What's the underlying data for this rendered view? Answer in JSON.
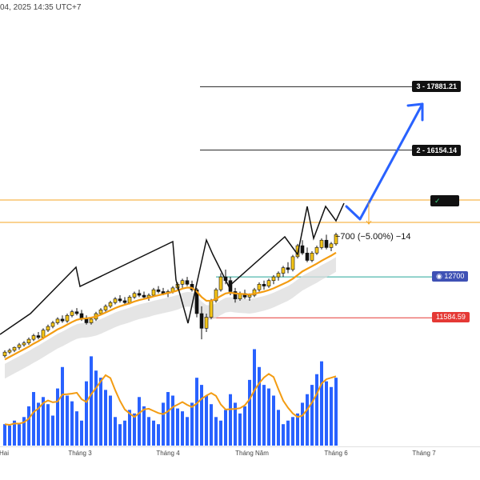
{
  "header": {
    "timestamp": "04, 2025 14:35 UTC+7"
  },
  "colors": {
    "up_candle": "#f5c518",
    "down_candle": "#111111",
    "ma_line": "#f39c12",
    "volume_bar": "#2962ff",
    "volume_ma": "#f39c12",
    "arrow": "#2962ff",
    "target_line": "#222222",
    "resistance_line": "#f5a623",
    "support_line": "#26a69a",
    "stop_line": "#e53935",
    "cloud": "#dcdcdc"
  },
  "levels": [
    {
      "label": "3 - 17881.21",
      "price": 17881.21
    },
    {
      "label": "2 - 16154.14",
      "price": 16154.14
    }
  ],
  "marker_check": "✓",
  "price_tags": {
    "support": {
      "label": "◉ 12700",
      "price": 12700
    },
    "stop": {
      "label": "11584.59",
      "price": 11584.59
    }
  },
  "annotation": "−700 (−5.00%) −14",
  "chart_data": {
    "type": "candlestick",
    "title": "",
    "xlabel": "",
    "ylabel": "",
    "x_ticks": [
      "Hai",
      "Tháng 3",
      "Tháng 4",
      "Tháng Năm",
      "Tháng 6",
      "Tháng 7"
    ],
    "series": [
      {
        "values": [
          [
            10550,
            10700,
            10500,
            10650
          ],
          [
            10650,
            10750,
            10600,
            10700
          ],
          [
            10700,
            10800,
            10650,
            10780
          ],
          [
            10780,
            10900,
            10720,
            10850
          ],
          [
            10850,
            10950,
            10800,
            10900
          ],
          [
            10900,
            11050,
            10850,
            11000
          ],
          [
            11000,
            11150,
            10950,
            11100
          ],
          [
            11100,
            11200,
            11000,
            11050
          ],
          [
            11050,
            11300,
            11000,
            11250
          ],
          [
            11250,
            11400,
            11200,
            11350
          ],
          [
            11350,
            11500,
            11300,
            11450
          ],
          [
            11450,
            11600,
            11400,
            11550
          ],
          [
            11550,
            11650,
            11450,
            11500
          ],
          [
            11500,
            11700,
            11450,
            11650
          ],
          [
            11650,
            11800,
            11600,
            11750
          ],
          [
            11750,
            11850,
            11650,
            11700
          ],
          [
            11700,
            11800,
            11500,
            11550
          ],
          [
            11550,
            11650,
            11400,
            11450
          ],
          [
            11450,
            11600,
            11400,
            11550
          ],
          [
            11550,
            11750,
            11500,
            11700
          ],
          [
            11700,
            11850,
            11650,
            11800
          ],
          [
            11800,
            11950,
            11750,
            11900
          ],
          [
            11900,
            12050,
            11850,
            12000
          ],
          [
            12000,
            12150,
            11950,
            12100
          ],
          [
            12100,
            12200,
            12000,
            12050
          ],
          [
            12050,
            12150,
            11950,
            12000
          ],
          [
            12000,
            12200,
            11950,
            12150
          ],
          [
            12150,
            12300,
            12100,
            12250
          ],
          [
            12250,
            12350,
            12150,
            12200
          ],
          [
            12200,
            12300,
            12100,
            12150
          ],
          [
            12150,
            12250,
            12050,
            12200
          ],
          [
            12200,
            12400,
            12150,
            12350
          ],
          [
            12350,
            12450,
            12250,
            12300
          ],
          [
            12300,
            12400,
            12200,
            12250
          ],
          [
            12250,
            12350,
            12150,
            12300
          ],
          [
            12300,
            12450,
            12250,
            12400
          ],
          [
            12400,
            12550,
            12350,
            12500
          ],
          [
            12500,
            12650,
            12400,
            12600
          ],
          [
            12600,
            12700,
            12450,
            12500
          ],
          [
            12500,
            12600,
            12300,
            12350
          ],
          [
            12350,
            12400,
            11600,
            11700
          ],
          [
            11700,
            11900,
            11000,
            11300
          ],
          [
            11300,
            11700,
            11200,
            11600
          ],
          [
            11600,
            12100,
            11550,
            12050
          ],
          [
            12050,
            12400,
            12000,
            12350
          ],
          [
            12350,
            12800,
            12300,
            12700
          ],
          [
            12700,
            12900,
            12500,
            12600
          ],
          [
            12600,
            12700,
            12200,
            12300
          ],
          [
            12300,
            12400,
            12000,
            12100
          ],
          [
            12100,
            12300,
            12050,
            12250
          ],
          [
            12250,
            12350,
            12100,
            12150
          ],
          [
            12150,
            12250,
            12050,
            12200
          ],
          [
            12200,
            12400,
            12150,
            12350
          ],
          [
            12350,
            12550,
            12300,
            12500
          ],
          [
            12500,
            12600,
            12350,
            12450
          ],
          [
            12450,
            12650,
            12400,
            12600
          ],
          [
            12600,
            12750,
            12500,
            12700
          ],
          [
            12700,
            12850,
            12600,
            12800
          ],
          [
            12800,
            13000,
            12700,
            12950
          ],
          [
            12950,
            13100,
            12800,
            12900
          ],
          [
            12900,
            13300,
            12850,
            13250
          ],
          [
            13250,
            13600,
            13200,
            13550
          ],
          [
            13550,
            13700,
            13300,
            13350
          ],
          [
            13350,
            13500,
            13100,
            13150
          ],
          [
            13150,
            13400,
            13100,
            13350
          ],
          [
            13350,
            13550,
            13300,
            13500
          ],
          [
            13500,
            13750,
            13450,
            13700
          ],
          [
            13700,
            13850,
            13450,
            13500
          ],
          [
            13500,
            13650,
            13400,
            13600
          ],
          [
            13600,
            13900,
            13550,
            13850
          ]
        ]
      },
      {
        "name": "",
        "values": [
          10450,
          10520,
          10590,
          10660,
          10730,
          10800,
          10880,
          10950,
          11030,
          11110,
          11190,
          11270,
          11330,
          11400,
          11470,
          11530,
          11560,
          11570,
          11590,
          11620,
          11670,
          11730,
          11790,
          11850,
          11900,
          11940,
          11980,
          12030,
          12070,
          12100,
          12130,
          12170,
          12200,
          12230,
          12260,
          12290,
          12330,
          12380,
          12410,
          12400,
          12300,
          12150,
          12050,
          12050,
          12100,
          12180,
          12250,
          12270,
          12250,
          12240,
          12230,
          12220,
          12240,
          12270,
          12300,
          12340,
          12390,
          12450,
          12510,
          12570,
          12650,
          12750,
          12850,
          12920,
          12990,
          13060,
          13140,
          13210,
          13280,
          13360
        ]
      },
      {
        "name": "",
        "values": [
          30,
          28,
          35,
          30,
          40,
          55,
          75,
          60,
          68,
          58,
          42,
          80,
          110,
          70,
          62,
          48,
          35,
          90,
          125,
          105,
          95,
          78,
          70,
          40,
          30,
          35,
          50,
          45,
          68,
          55,
          40,
          35,
          30,
          60,
          75,
          70,
          52,
          48,
          40,
          60,
          95,
          85,
          70,
          58,
          40,
          35,
          50,
          72,
          60,
          45,
          55,
          92,
          135,
          110,
          85,
          80,
          70,
          50,
          30,
          35,
          40,
          45,
          60,
          72,
          85,
          100,
          118,
          90,
          82,
          95
        ]
      }
    ]
  }
}
